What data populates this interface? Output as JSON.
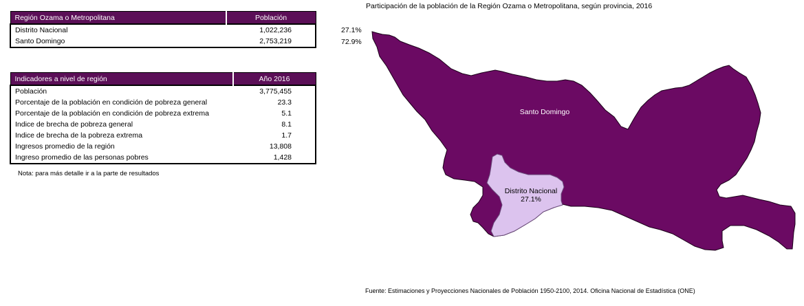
{
  "region_table": {
    "header_name": "Región Ozama o Metropolitana",
    "header_value": "Población",
    "rows": [
      {
        "name": "Distrito Nacional",
        "value": "1,022,236"
      },
      {
        "name": "Santo Domingo",
        "value": "2,753,219"
      }
    ]
  },
  "indicators_table": {
    "header_name": "Indicadores a nivel de región",
    "header_value": "Año 2016",
    "rows": [
      {
        "name": "Población",
        "value": "3,775,455"
      },
      {
        "name": "Porcentaje de la población en condición de pobreza general",
        "value": "23.3"
      },
      {
        "name": "Porcentaje de la población en condición de pobreza extrema",
        "value": "5.1"
      },
      {
        "name": "Indice de brecha de pobreza general",
        "value": "8.1"
      },
      {
        "name": "Indice de  brecha de la pobreza extrema",
        "value": "1.7"
      },
      {
        "name": "Ingresos promedio de la región",
        "value": "13,808"
      },
      {
        "name": "Ingreso promedio de las personas pobres",
        "value": "1,428"
      }
    ]
  },
  "note": "Nota: para más detalle ir a la parte de resultados",
  "map": {
    "title": "Participación de la población de la Región Ozama o Metropolitana, según provincia, 2016",
    "side_percentages": [
      "27.1%",
      "72.9%"
    ],
    "regions": [
      {
        "name": "Santo Domingo",
        "label": "Santo Domingo",
        "color": "#6b0a63"
      },
      {
        "name": "Distrito Nacional",
        "label": "Distrito Nacional",
        "percent_label": "27.1%",
        "color": "#dcc3ee"
      }
    ],
    "source": "Fuente: Estimaciones y Proyecciones Nacionales de Población 1950-2100, 2014. Oficina Nacional de Estadística (ONE)"
  }
}
